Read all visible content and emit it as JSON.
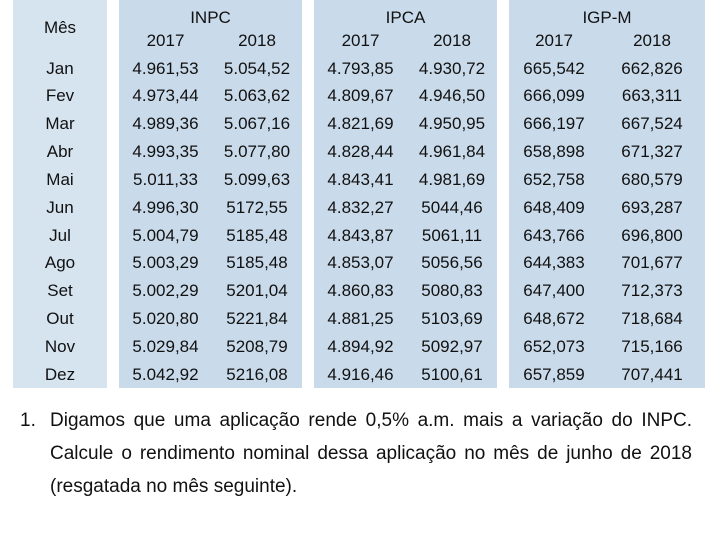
{
  "table": {
    "month_header": "Mês",
    "groups": [
      {
        "name": "INPC",
        "years": [
          "2017",
          "2018"
        ]
      },
      {
        "name": "IPCA",
        "years": [
          "2017",
          "2018"
        ]
      },
      {
        "name": "IGP-M",
        "years": [
          "2017",
          "2018"
        ]
      }
    ],
    "rows": [
      {
        "month": "Jan",
        "values": [
          "4.961,53",
          "5.054,52",
          "4.793,85",
          "4.930,72",
          "665,542",
          "662,826"
        ]
      },
      {
        "month": "Fev",
        "values": [
          "4.973,44",
          "5.063,62",
          "4.809,67",
          "4.946,50",
          "666,099",
          "663,311"
        ]
      },
      {
        "month": "Mar",
        "values": [
          "4.989,36",
          "5.067,16",
          "4.821,69",
          "4.950,95",
          "666,197",
          "667,524"
        ]
      },
      {
        "month": "Abr",
        "values": [
          "4.993,35",
          "5.077,80",
          "4.828,44",
          "4.961,84",
          "658,898",
          "671,327"
        ]
      },
      {
        "month": "Mai",
        "values": [
          "5.011,33",
          "5.099,63",
          "4.843,41",
          "4.981,69",
          "652,758",
          "680,579"
        ]
      },
      {
        "month": "Jun",
        "values": [
          "4.996,30",
          "5172,55",
          "4.832,27",
          "5044,46",
          "648,409",
          "693,287"
        ]
      },
      {
        "month": "Jul",
        "values": [
          "5.004,79",
          "5185,48",
          "4.843,87",
          "5061,11",
          "643,766",
          "696,800"
        ]
      },
      {
        "month": "Ago",
        "values": [
          "5.003,29",
          "5185,48",
          "4.853,07",
          "5056,56",
          "644,383",
          "701,677"
        ]
      },
      {
        "month": "Set",
        "values": [
          "5.002,29",
          "5201,04",
          "4.860,83",
          "5080,83",
          "647,400",
          "712,373"
        ]
      },
      {
        "month": "Out",
        "values": [
          "5.020,80",
          "5221,84",
          "4.881,25",
          "5103,69",
          "648,672",
          "718,684"
        ]
      },
      {
        "month": "Nov",
        "values": [
          "5.029,84",
          "5208,79",
          "4.894,92",
          "5092,97",
          "652,073",
          "715,166"
        ]
      },
      {
        "month": "Dez",
        "values": [
          "5.042,92",
          "5216,08",
          "4.916,46",
          "5100,61",
          "657,859",
          "707,441"
        ]
      }
    ]
  },
  "question": {
    "number": "1.",
    "text": "Digamos que uma aplicação rende 0,5% a.m. mais a variação do INPC. Calcule o rendimento nominal dessa aplicação no mês de junho de 2018 (resgatada no mês seguinte)."
  }
}
